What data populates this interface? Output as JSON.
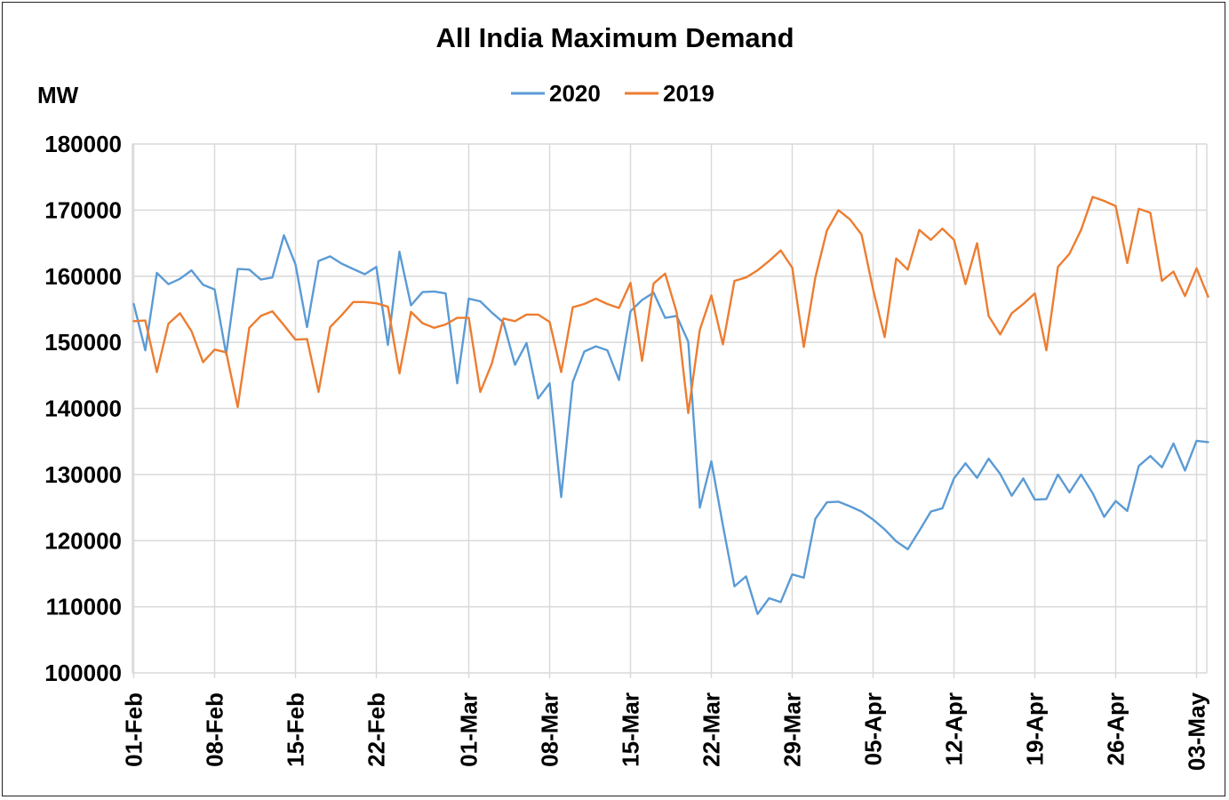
{
  "chart_data": {
    "type": "line",
    "title": "All India Maximum Demand",
    "ylabel": "MW",
    "xlabel": "",
    "ylim": [
      100000,
      180000
    ],
    "yticks": [
      "180000",
      "170000",
      "160000",
      "150000",
      "140000",
      "130000",
      "120000",
      "110000",
      "100000"
    ],
    "x_tick_labels": [
      "01-Feb",
      "08-Feb",
      "15-Feb",
      "22-Feb",
      "01-Mar",
      "08-Mar",
      "15-Mar",
      "22-Mar",
      "29-Mar",
      "05-Apr",
      "12-Apr",
      "19-Apr",
      "26-Apr",
      "03-May"
    ],
    "x_tick_day_index": [
      0,
      7,
      14,
      21,
      29,
      36,
      43,
      50,
      57,
      64,
      71,
      78,
      85,
      92
    ],
    "legend_position": "top-center",
    "grid": true,
    "series": [
      {
        "name": "2020",
        "color": "#5B9BD5",
        "values": [
          155800,
          148800,
          160500,
          158800,
          159600,
          160900,
          158700,
          158000,
          148200,
          161100,
          161000,
          159500,
          159800,
          166200,
          161800,
          152300,
          162300,
          163000,
          161900,
          161100,
          160300,
          161400,
          149600,
          163700,
          155600,
          157600,
          157700,
          157400,
          143800,
          156600,
          156200,
          154500,
          153000,
          146600,
          149900,
          141500,
          143800,
          126600,
          144000,
          148600,
          149400,
          148800,
          144300,
          154700,
          156400,
          157500,
          153700,
          154000,
          150100,
          125000,
          132000,
          122300,
          113100,
          114600,
          108900,
          111300,
          110700,
          114900,
          114400,
          123300,
          125800,
          125900,
          125200,
          124400,
          123200,
          121700,
          119900,
          118700,
          121500,
          124400,
          124900,
          129400,
          131700,
          129500,
          132400,
          130100,
          126800,
          129400,
          126200,
          126300,
          130000,
          127300,
          130000,
          127200,
          123600,
          126000,
          124500,
          131300,
          132800,
          131100,
          134700,
          130600,
          135100,
          134900
        ],
        "start": "01-Feb",
        "end": "04-May"
      },
      {
        "name": "2019",
        "color": "#ED7D31",
        "values": [
          153200,
          153300,
          145500,
          152800,
          154400,
          151700,
          147000,
          148900,
          148500,
          140200,
          152200,
          154000,
          154700,
          152600,
          150400,
          150500,
          142500,
          152300,
          154100,
          156100,
          156100,
          155900,
          155400,
          145300,
          154600,
          152900,
          152200,
          152700,
          153700,
          153700,
          142500,
          146800,
          153600,
          153200,
          154200,
          154200,
          153100,
          145500,
          155300,
          155800,
          156600,
          155800,
          155200,
          159000,
          147200,
          158900,
          160400,
          154500,
          139300,
          151900,
          157100,
          149700,
          159300,
          159800,
          160900,
          162300,
          163900,
          161300,
          149300,
          159800,
          166900,
          170000,
          168600,
          166300,
          158000,
          150800,
          162700,
          161000,
          167000,
          165500,
          167200,
          165500,
          158800,
          165000,
          154000,
          151200,
          154400,
          155800,
          157400,
          148800,
          161400,
          163400,
          167000,
          172000,
          171400,
          170600,
          162000,
          170200,
          169600,
          159300,
          160700,
          157000,
          161200,
          156900
        ],
        "start": "01-Feb",
        "end": "04-May"
      }
    ]
  }
}
